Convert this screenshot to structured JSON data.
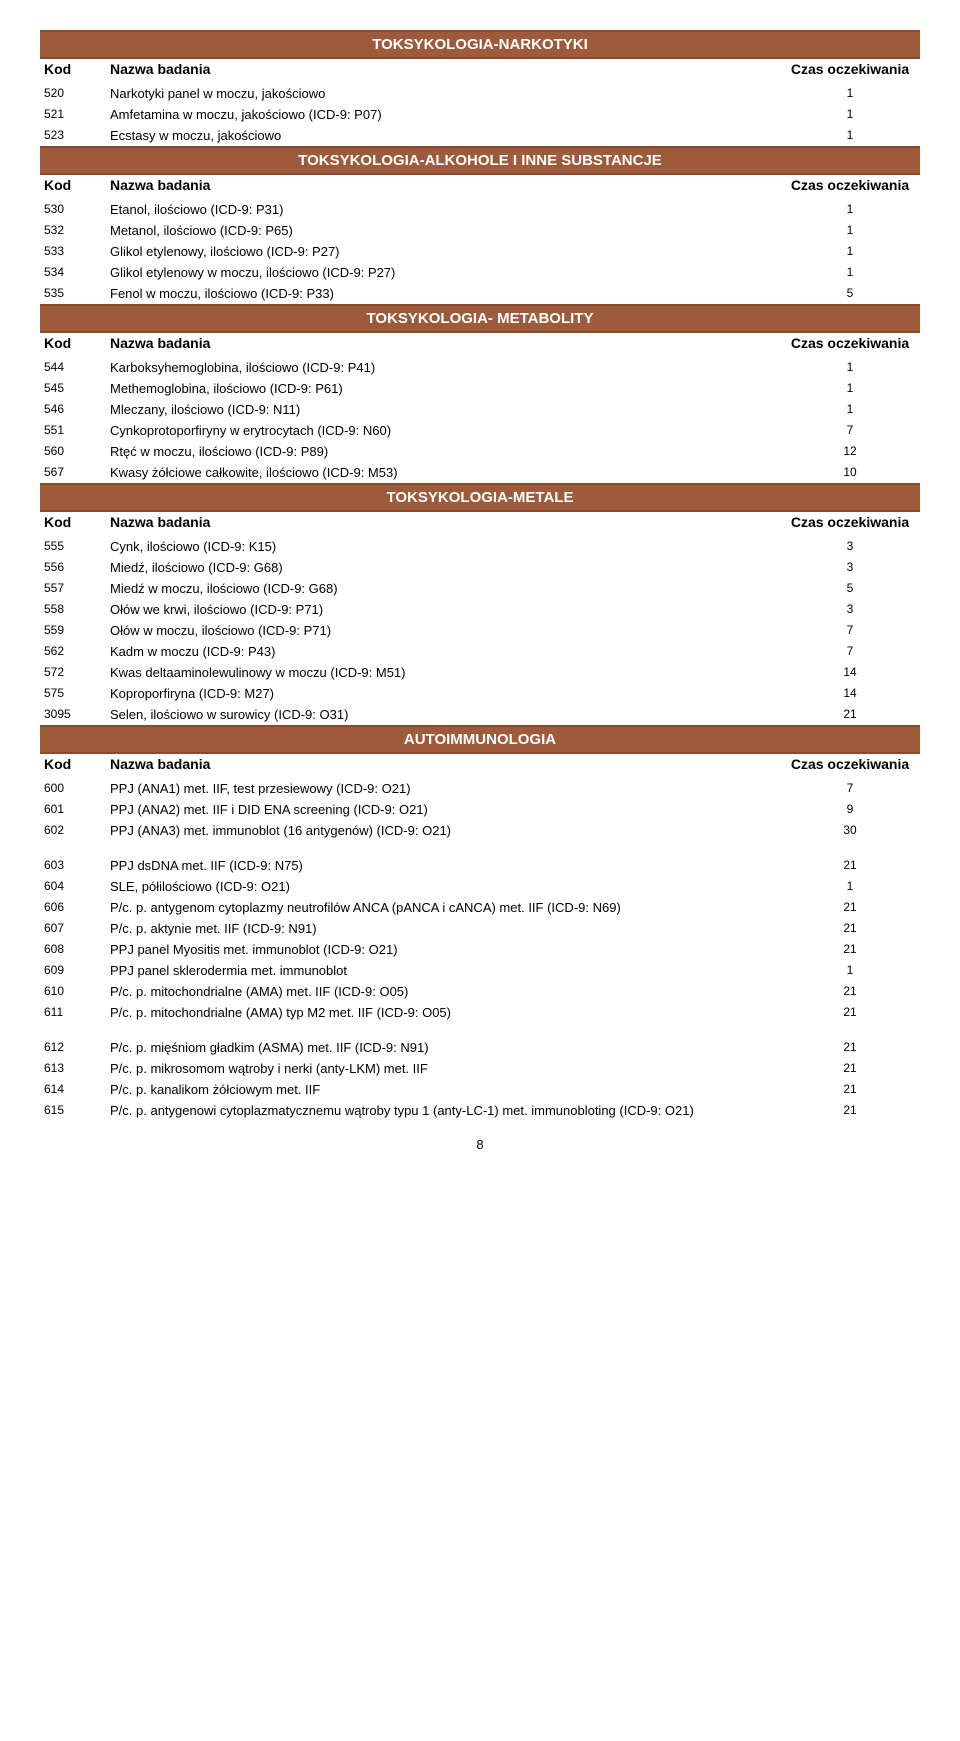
{
  "page_number": "8",
  "header": {
    "kod": "Kod",
    "name": "Nazwa badania",
    "time": "Czas oczekiwania"
  },
  "colors": {
    "section_bg": "#9e5b3c",
    "section_text": "#ffffff",
    "border": "#8b4a2b",
    "text": "#000000",
    "bg": "#ffffff"
  },
  "font_sizes": {
    "section_title": 15,
    "header": 14,
    "row": 13,
    "small": 12
  },
  "sections": [
    {
      "title": "TOKSYKOLOGIA-NARKOTYKI",
      "rows": [
        {
          "kod": "520",
          "name": "Narkotyki panel w moczu, jakościowo",
          "time": "1"
        },
        {
          "kod": "521",
          "name": "Amfetamina w moczu, jakościowo (ICD-9: P07)",
          "time": "1"
        },
        {
          "kod": "523",
          "name": "Ecstasy w moczu, jakościowo",
          "time": "1"
        }
      ]
    },
    {
      "title": "TOKSYKOLOGIA-ALKOHOLE I INNE SUBSTANCJE",
      "rows": [
        {
          "kod": "530",
          "name": "Etanol, ilościowo (ICD-9: P31)",
          "time": "1"
        },
        {
          "kod": "532",
          "name": "Metanol, ilościowo (ICD-9: P65)",
          "time": "1"
        },
        {
          "kod": "533",
          "name": "Glikol etylenowy, ilościowo (ICD-9: P27)",
          "time": "1"
        },
        {
          "kod": "534",
          "name": "Glikol etylenowy w moczu, ilościowo (ICD-9: P27)",
          "time": "1"
        },
        {
          "kod": "535",
          "name": "Fenol w moczu, ilościowo (ICD-9: P33)",
          "time": "5"
        }
      ]
    },
    {
      "title": "TOKSYKOLOGIA- METABOLITY",
      "rows": [
        {
          "kod": "544",
          "name": "Karboksyhemoglobina, ilościowo (ICD-9: P41)",
          "time": "1"
        },
        {
          "kod": "545",
          "name": "Methemoglobina, ilościowo (ICD-9: P61)",
          "time": "1"
        },
        {
          "kod": "546",
          "name": "Mleczany, ilościowo (ICD-9: N11)",
          "time": "1"
        },
        {
          "kod": "551",
          "name": "Cynkoprotoporfiryny w erytrocytach (ICD-9: N60)",
          "time": "7"
        },
        {
          "kod": "560",
          "name": "Rtęć w moczu, ilościowo (ICD-9: P89)",
          "time": "12"
        },
        {
          "kod": "567",
          "name": "Kwasy żółciowe całkowite, ilościowo (ICD-9: M53)",
          "time": "10"
        }
      ]
    },
    {
      "title": "TOKSYKOLOGIA-METALE",
      "rows": [
        {
          "kod": "555",
          "name": "Cynk, ilościowo (ICD-9: K15)",
          "time": "3"
        },
        {
          "kod": "556",
          "name": "Miedź, ilościowo (ICD-9: G68)",
          "time": "3"
        },
        {
          "kod": "557",
          "name": "Miedź w moczu, ilościowo (ICD-9: G68)",
          "time": "5"
        },
        {
          "kod": "558",
          "name": "Ołów we krwi, ilościowo (ICD-9: P71)",
          "time": "3"
        },
        {
          "kod": "559",
          "name": "Ołów w moczu, ilościowo (ICD-9: P71)",
          "time": "7"
        },
        {
          "kod": "562",
          "name": "Kadm w moczu (ICD-9: P43)",
          "time": "7"
        },
        {
          "kod": "572",
          "name": "Kwas deltaaminolewulinowy w moczu (ICD-9: M51)",
          "time": "14"
        },
        {
          "kod": "575",
          "name": "Koproporfiryna (ICD-9: M27)",
          "time": "14"
        },
        {
          "kod": "3095",
          "name": "Selen, ilościowo w surowicy (ICD-9: O31)",
          "time": "21"
        }
      ]
    },
    {
      "title": "AUTOIMMUNOLOGIA",
      "rows": [
        {
          "kod": "600",
          "name": "PPJ (ANA1) met. IIF, test przesiewowy (ICD-9: O21)",
          "time": "7"
        },
        {
          "kod": "601",
          "name": "PPJ (ANA2) met. IIF i DID ENA screening (ICD-9: O21)",
          "time": "9"
        },
        {
          "kod": "602",
          "name": "PPJ (ANA3) met. immunoblot (16 antygenów) (ICD-9: O21)",
          "time": "30",
          "gap_after": true
        },
        {
          "kod": "603",
          "name": "PPJ dsDNA met. IIF (ICD-9: N75)",
          "time": "21"
        },
        {
          "kod": "604",
          "name": "SLE, półilościowo (ICD-9: O21)",
          "time": "1"
        },
        {
          "kod": "606",
          "name": "P/c. p. antygenom cytoplazmy neutrofilów ANCA (pANCA i cANCA) met. IIF (ICD-9: N69)",
          "time": "21"
        },
        {
          "kod": "607",
          "name": "P/c. p. aktynie met. IIF (ICD-9: N91)",
          "time": "21"
        },
        {
          "kod": "608",
          "name": "PPJ panel Myositis met. immunoblot (ICD-9: O21)",
          "time": "21"
        },
        {
          "kod": "609",
          "name": "PPJ panel sklerodermia met. immunoblot",
          "time": "1"
        },
        {
          "kod": "610",
          "name": "P/c. p. mitochondrialne (AMA) met. IIF (ICD-9: O05)",
          "time": "21"
        },
        {
          "kod": "611",
          "name": "P/c. p. mitochondrialne (AMA) typ M2 met. IIF (ICD-9: O05)",
          "time": "21",
          "gap_after": true
        },
        {
          "kod": "612",
          "name": "P/c. p. mięśniom gładkim (ASMA) met. IIF (ICD-9: N91)",
          "time": "21"
        },
        {
          "kod": "613",
          "name": "P/c. p. mikrosomom wątroby i nerki (anty-LKM) met. IIF",
          "time": "21"
        },
        {
          "kod": "614",
          "name": "P/c. p. kanalikom żółciowym met. IIF",
          "time": "21"
        },
        {
          "kod": "615",
          "name": "P/c. p. antygenowi cytoplazmatycznemu wątroby typu 1 (anty-LC-1) met. immunobloting (ICD-9: O21)",
          "time": "21"
        }
      ]
    }
  ]
}
